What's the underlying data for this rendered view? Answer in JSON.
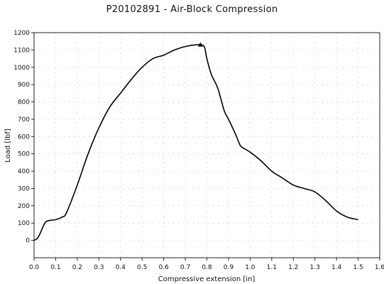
{
  "chart_data": {
    "type": "line",
    "title": "P20102891 - Air-Block Compression",
    "xlabel": "Compressive extension [in]",
    "ylabel": "Load [lbf]",
    "xlim": [
      0.0,
      1.6
    ],
    "ylim": [
      -100,
      1200
    ],
    "xticks": [
      "0.0",
      "0.1",
      "0.2",
      "0.3",
      "0.4",
      "0.5",
      "0.6",
      "0.7",
      "0.8",
      "0.9",
      "1.0",
      "1.1",
      "1.2",
      "1.3",
      "1.4",
      "1.5",
      "1.6"
    ],
    "yticks": [
      "0",
      "100",
      "200",
      "300",
      "400",
      "500",
      "600",
      "700",
      "800",
      "900",
      "1000",
      "1100",
      "1200"
    ],
    "grid": "dotted",
    "series": [
      {
        "color": "#000000",
        "x": [
          0.0,
          0.02,
          0.05,
          0.07,
          0.1,
          0.13,
          0.15,
          0.2,
          0.25,
          0.3,
          0.35,
          0.4,
          0.45,
          0.5,
          0.55,
          0.6,
          0.65,
          0.7,
          0.75,
          0.78,
          0.79,
          0.8,
          0.82,
          0.85,
          0.88,
          0.9,
          0.93,
          0.95,
          0.96,
          1.0,
          1.05,
          1.1,
          1.15,
          1.2,
          1.25,
          1.3,
          1.35,
          1.4,
          1.45,
          1.5
        ],
        "y": [
          0,
          20,
          100,
          115,
          120,
          135,
          160,
          320,
          500,
          650,
          770,
          850,
          930,
          1000,
          1050,
          1070,
          1100,
          1120,
          1130,
          1128,
          1110,
          1050,
          960,
          880,
          750,
          700,
          620,
          560,
          540,
          510,
          460,
          400,
          360,
          320,
          300,
          280,
          230,
          170,
          135,
          120
        ]
      }
    ],
    "peak_marker": {
      "x": 0.77,
      "y": 1130,
      "shape": "triangle"
    }
  }
}
